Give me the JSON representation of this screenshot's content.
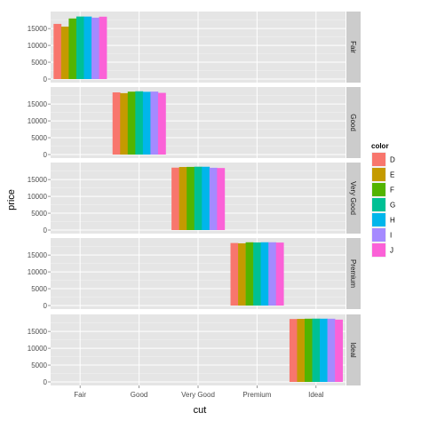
{
  "chart_data": {
    "type": "bar",
    "xlabel": "cut",
    "ylabel": "price",
    "categories": [
      "Fair",
      "Good",
      "Very Good",
      "Premium",
      "Ideal"
    ],
    "facets": [
      "Fair",
      "Good",
      "Very Good",
      "Premium",
      "Ideal"
    ],
    "y_ticks": [
      "0",
      "5000",
      "10000",
      "15000"
    ],
    "ylim": [
      0,
      19000
    ],
    "grid": true,
    "legend": {
      "title": "color",
      "position": "right"
    },
    "series": [
      {
        "name": "D",
        "color": "#F8766D",
        "values": [
          16386,
          18468,
          18542,
          18575,
          18693
        ]
      },
      {
        "name": "E",
        "color": "#C49A00",
        "values": [
          15584,
          18236,
          18731,
          18477,
          18729
        ]
      },
      {
        "name": "F",
        "color": "#53B400",
        "values": [
          17995,
          18686,
          18759,
          18791,
          18780
        ]
      },
      {
        "name": "G",
        "color": "#00C094",
        "values": [
          18574,
          18788,
          18818,
          18741,
          18806
        ]
      },
      {
        "name": "H",
        "color": "#00B6EB",
        "values": [
          18565,
          18640,
          18803,
          18795,
          18791
        ]
      },
      {
        "name": "I",
        "color": "#A58AFF",
        "values": [
          18242,
          18707,
          18500,
          18797,
          18779
        ]
      },
      {
        "name": "J",
        "color": "#FB61D7",
        "values": [
          18531,
          18325,
          18430,
          18710,
          18508
        ]
      }
    ]
  },
  "theme": {
    "panel_bg": "#E5E5E5",
    "grid_major": "#FFFFFF",
    "grid_minor": "#F2F2F2",
    "strip_bg": "#CCCCCC"
  }
}
